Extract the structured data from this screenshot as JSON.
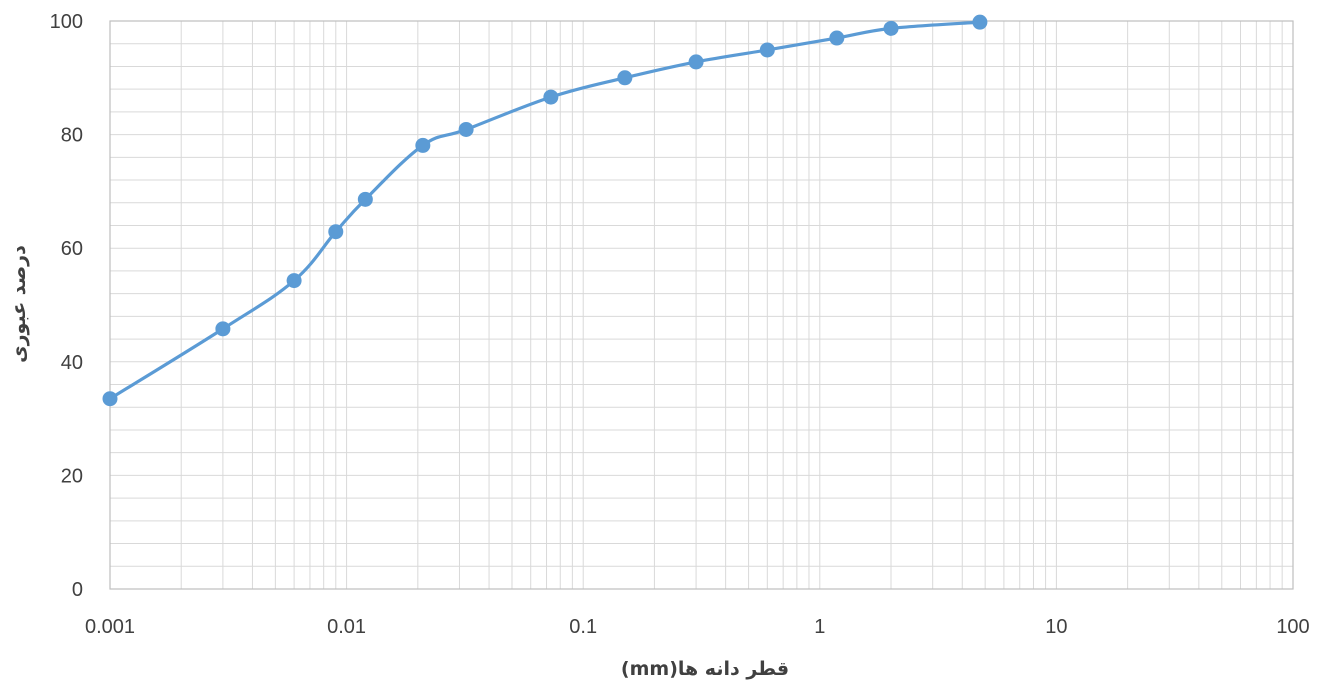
{
  "chart_data": {
    "type": "line",
    "title": "",
    "xlabel": "قطر دانه ها(mm)",
    "ylabel": "درصد عبوری",
    "x_scale": "log",
    "xlim": [
      0.001,
      100
    ],
    "ylim": [
      0,
      100
    ],
    "x_ticks": [
      "0.001",
      "0.01",
      "0.1",
      "1",
      "10",
      "100"
    ],
    "y_ticks": [
      "0",
      "20",
      "40",
      "60",
      "80",
      "100"
    ],
    "grid": true,
    "legend": "none",
    "colors": {
      "series": "#5b9bd5",
      "grid": "#d9d9d9",
      "axis": "#bfbfbf",
      "text": "#404040"
    },
    "series": [
      {
        "x": [
          0.001,
          0.003,
          0.006,
          0.009,
          0.012,
          0.021,
          0.032,
          0.073,
          0.15,
          0.3,
          0.6,
          1.18,
          2.0,
          4.75
        ],
        "y": [
          33.5,
          45.8,
          54.3,
          62.9,
          68.6,
          78.1,
          80.9,
          86.6,
          90.0,
          92.8,
          94.9,
          97.0,
          98.7,
          99.8
        ]
      }
    ]
  }
}
